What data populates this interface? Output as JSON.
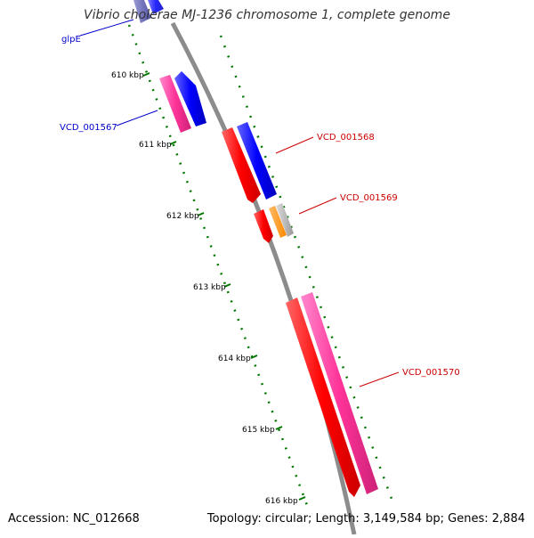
{
  "title": "Vibrio cholerae MJ-1236 chromosome 1, complete genome",
  "footer": {
    "accession": "Accession: NC_012668",
    "summary": "Topology: circular; Length: 3,149,584 bp; Genes: 2,884"
  },
  "ticks": [
    "610 kbp",
    "611 kbp",
    "612 kbp",
    "613 kbp",
    "614 kbp",
    "615 kbp",
    "616 kbp"
  ],
  "gene_labels": [
    {
      "text": "glpE",
      "color": "#0000cc"
    },
    {
      "text": "VCD_001567",
      "color": "#0000cc"
    },
    {
      "text": "VCD_001568",
      "color": "#cc0000"
    },
    {
      "text": "VCD_001569",
      "color": "#cc0000"
    },
    {
      "text": "VCD_001570",
      "color": "#cc0000"
    }
  ],
  "colors": {
    "backbone": "#888888",
    "tick": "#007700",
    "red": "#ff0000",
    "blue": "#0000ff",
    "pink": "#ff3399",
    "orange": "#ff8800",
    "gray": "#b0b0b0",
    "navy": "#333399"
  }
}
